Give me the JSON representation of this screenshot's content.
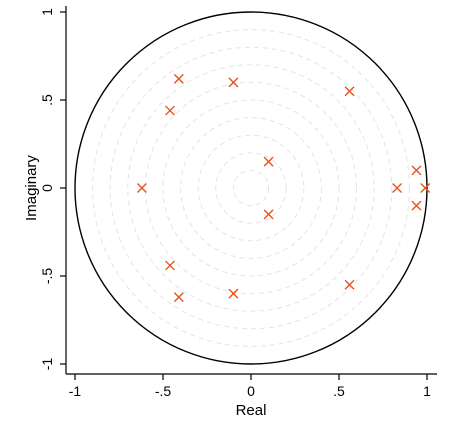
{
  "chart_data": {
    "type": "scatter",
    "xlabel": "Real",
    "ylabel": "Imaginary",
    "xlim": [
      -1.05,
      1.05
    ],
    "ylim": [
      -1.05,
      1.05
    ],
    "x_ticks": [
      {
        "value": -1,
        "label": "-1"
      },
      {
        "value": -0.5,
        "label": "-.5"
      },
      {
        "value": 0,
        "label": "0"
      },
      {
        "value": 0.5,
        "label": ".5"
      },
      {
        "value": 1,
        "label": "1"
      }
    ],
    "y_ticks": [
      {
        "value": -1,
        "label": "-1"
      },
      {
        "value": -0.5,
        "label": "-.5"
      },
      {
        "value": 0,
        "label": "0"
      },
      {
        "value": 0.5,
        "label": ".5"
      },
      {
        "value": 1,
        "label": "1"
      }
    ],
    "unit_circle": true,
    "reference_circles": [
      0.1,
      0.2,
      0.3,
      0.4,
      0.5,
      0.6,
      0.7,
      0.8,
      0.9
    ],
    "marker": "x",
    "marker_color": "#e8541e",
    "points": [
      {
        "x": 0.1,
        "y": 0.15
      },
      {
        "x": 0.1,
        "y": -0.15
      },
      {
        "x": -0.62,
        "y": 0.0
      },
      {
        "x": -0.41,
        "y": 0.62
      },
      {
        "x": -0.41,
        "y": -0.62
      },
      {
        "x": -0.46,
        "y": 0.44
      },
      {
        "x": -0.46,
        "y": -0.44
      },
      {
        "x": -0.1,
        "y": 0.6
      },
      {
        "x": -0.1,
        "y": -0.6
      },
      {
        "x": 0.56,
        "y": 0.55
      },
      {
        "x": 0.56,
        "y": -0.55
      },
      {
        "x": 0.83,
        "y": 0.0
      },
      {
        "x": 0.94,
        "y": 0.1
      },
      {
        "x": 0.94,
        "y": -0.1
      },
      {
        "x": 0.99,
        "y": 0.0
      }
    ]
  }
}
